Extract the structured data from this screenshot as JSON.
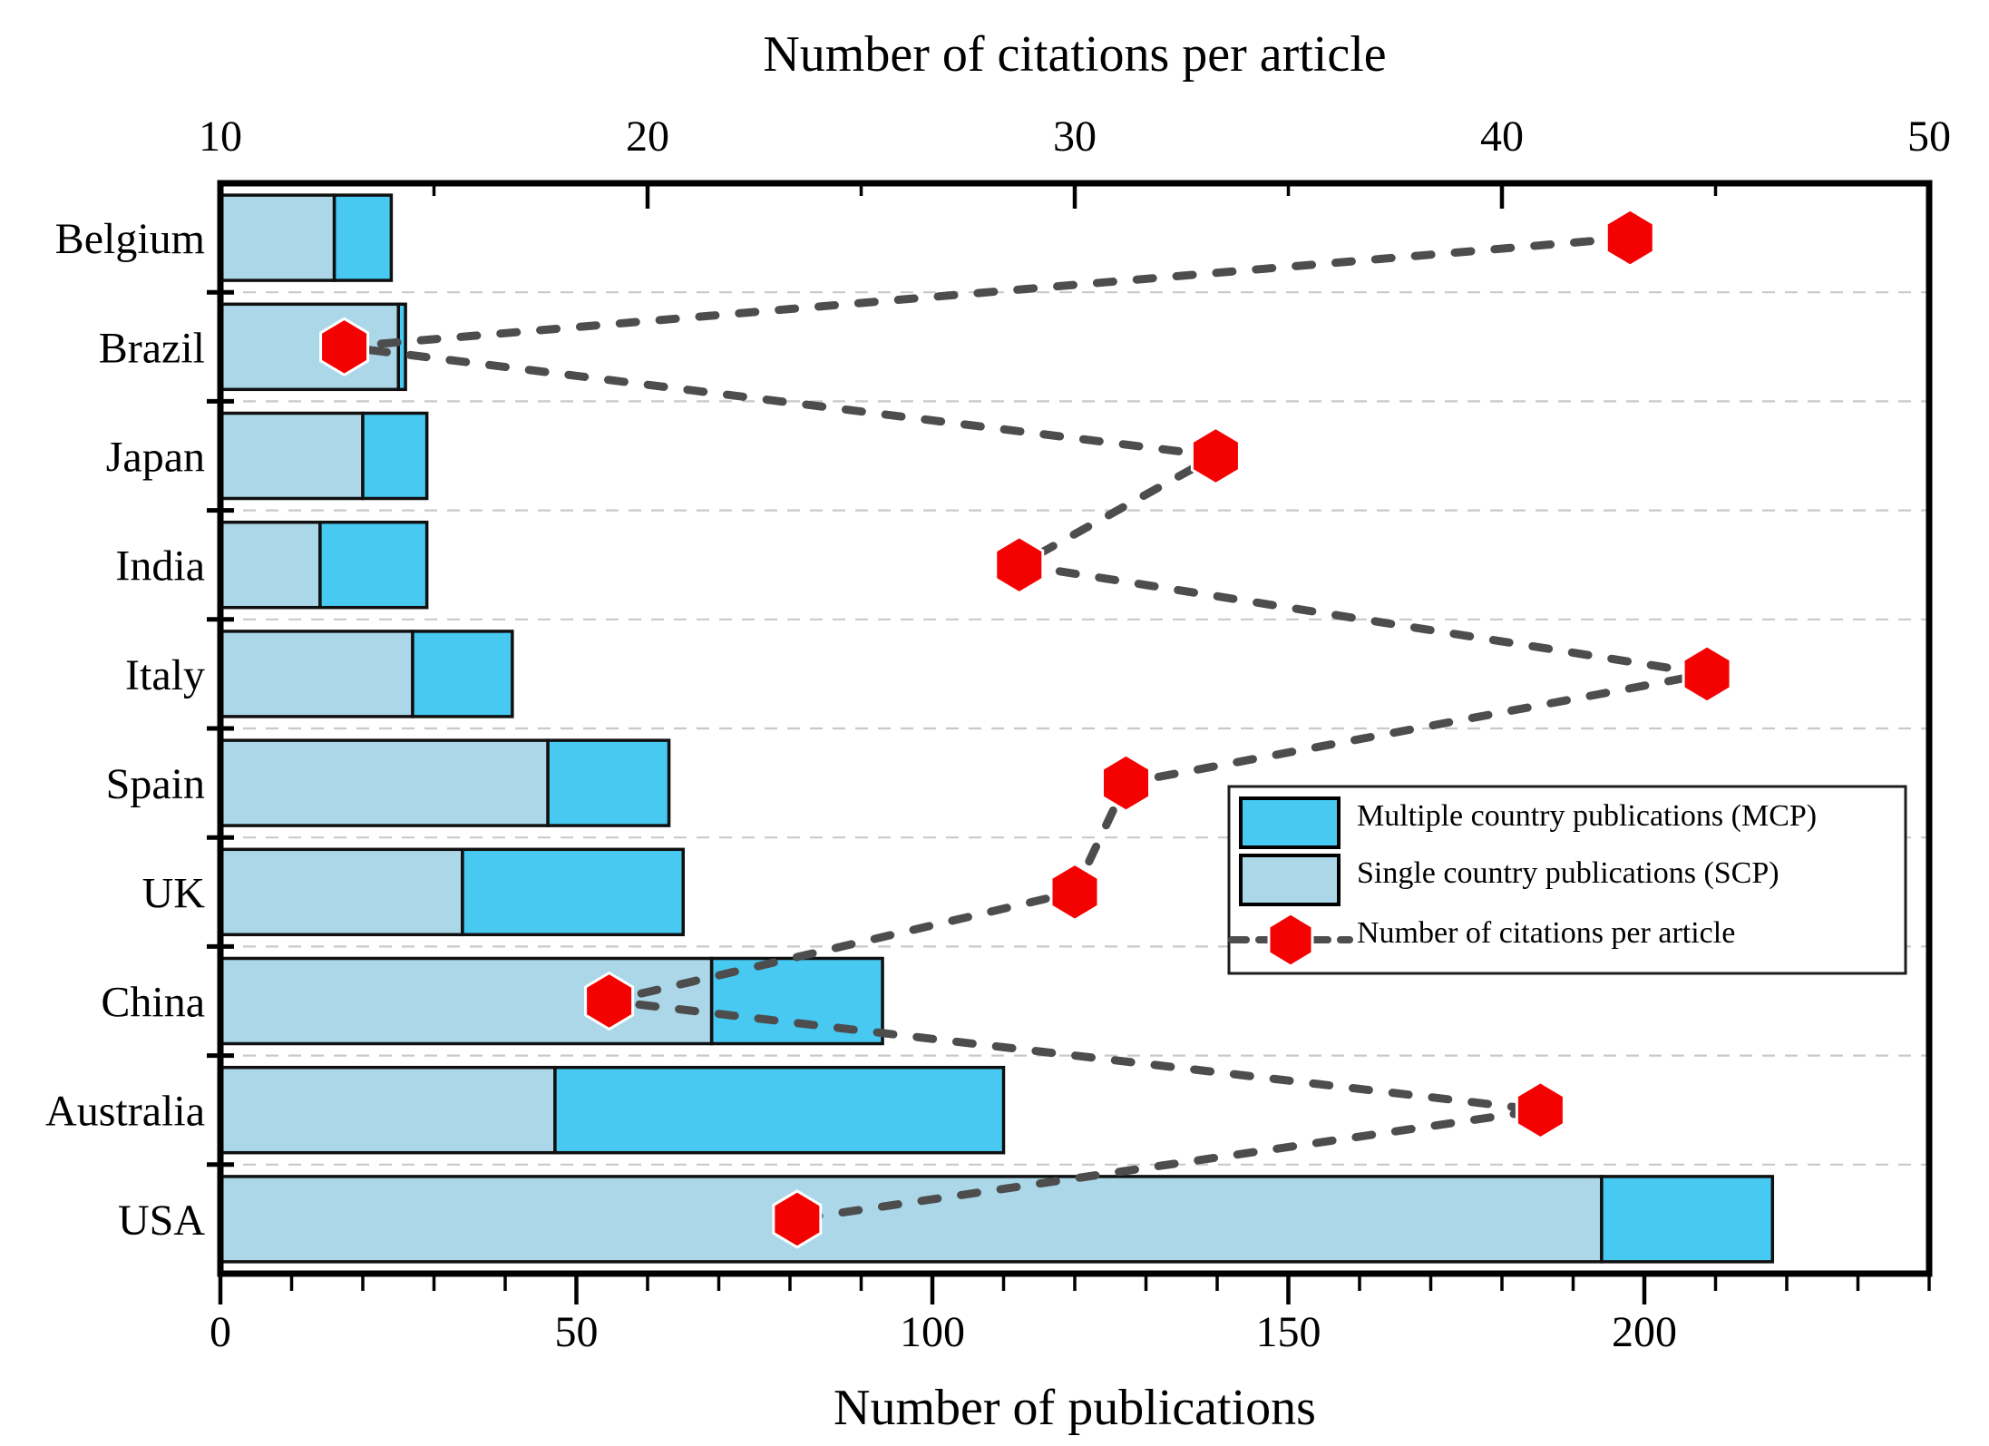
{
  "chart_data": {
    "type": "bar",
    "orientation": "horizontal-stacked",
    "top_axis_title": "Number of citations per article",
    "xlabel": "Number of publications",
    "categories": [
      "Belgium",
      "Brazil",
      "Japan",
      "India",
      "Italy",
      "Spain",
      "UK",
      "China",
      "Australia",
      "USA"
    ],
    "series": [
      {
        "name": "Single country publications (SCP)",
        "role": "scp",
        "axis": "bottom",
        "values": [
          16,
          25,
          20,
          14,
          27,
          46,
          34,
          69,
          47,
          194
        ]
      },
      {
        "name": "Multiple country publications (MCP)",
        "role": "mcp",
        "axis": "bottom",
        "values": [
          8,
          1,
          9,
          15,
          14,
          17,
          31,
          24,
          63,
          24
        ]
      },
      {
        "name": "Number of citations per article",
        "role": "citations",
        "axis": "top",
        "values": [
          43.0,
          12.9,
          33.3,
          28.7,
          44.8,
          31.2,
          30.0,
          19.1,
          40.9,
          23.5
        ]
      }
    ],
    "totals": [
      24,
      26,
      29,
      29,
      41,
      63,
      65,
      93,
      110,
      218
    ],
    "x_bottom_axis": {
      "label": "Number of publications",
      "min": 0,
      "max": 240,
      "major_ticks": [
        "0",
        "50",
        "100",
        "150",
        "200"
      ],
      "major_values": [
        0,
        50,
        100,
        150,
        200
      ],
      "minor_step": 10
    },
    "x_top_axis": {
      "label": "Number of citations per article",
      "min": 10,
      "max": 50,
      "major_ticks": [
        "10",
        "20",
        "30",
        "40",
        "50"
      ],
      "major_values": [
        10,
        20,
        30,
        40,
        50
      ],
      "minor_step": 5
    },
    "grid": "dashed horizontal separators between country rows",
    "legend": {
      "position": "middle-right",
      "entries": [
        {
          "swatch": "mcp",
          "label": "Multiple country publications (MCP)"
        },
        {
          "swatch": "scp",
          "label": "Single country publications (SCP)"
        },
        {
          "swatch": "citations-marker",
          "label": "Number of citations per article"
        }
      ]
    },
    "colors": {
      "mcp": "#47c9f2",
      "scp": "#abd7e9",
      "marker_red": "#f40202",
      "connector_gray": "#4d4d4d",
      "gridline": "#c9c9c9",
      "axis": "#000000",
      "background": "#ffffff"
    }
  }
}
